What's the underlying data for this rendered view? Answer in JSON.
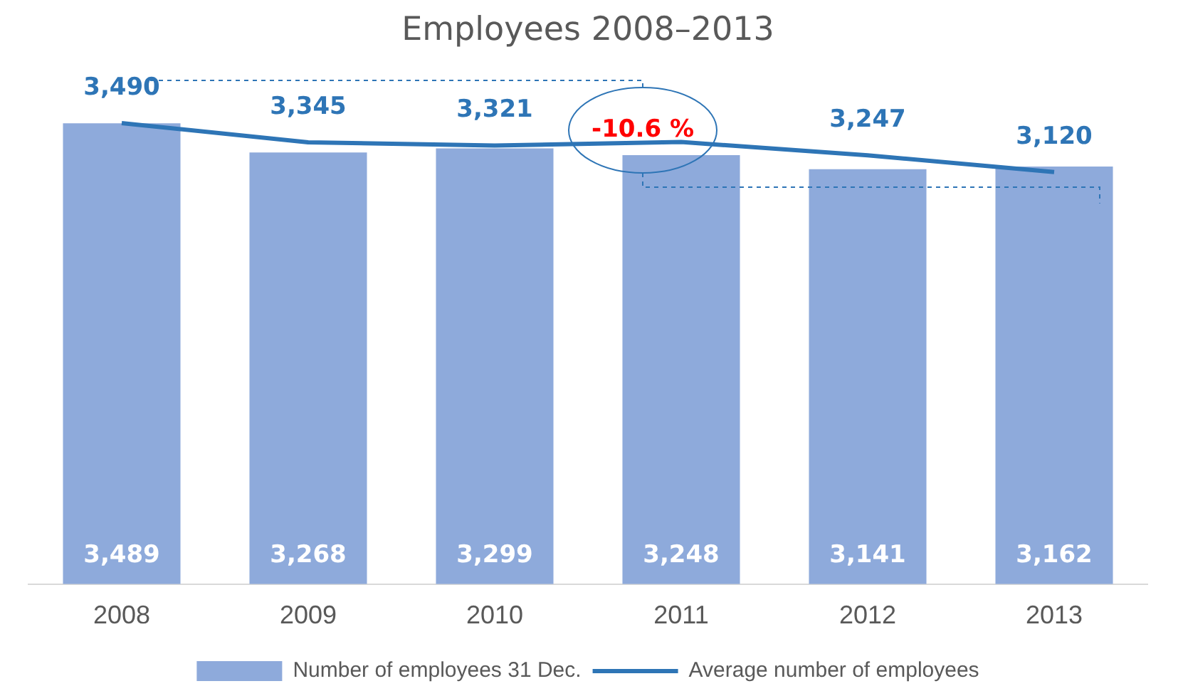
{
  "chart_data": {
    "type": "bar",
    "title": "Employees 2008–2013",
    "categories": [
      "2008",
      "2009",
      "2010",
      "2011",
      "2012",
      "2013"
    ],
    "series": [
      {
        "name": "Number of employees 31 Dec.",
        "color": "#8eaadb",
        "values": [
          3489,
          3268,
          3299,
          3248,
          3141,
          3162
        ],
        "value_labels": [
          "3,489",
          "3,268",
          "3,299",
          "3,248",
          "3,141",
          "3,162"
        ]
      },
      {
        "name": "Average number of employees",
        "type": "line",
        "color": "#2e75b6",
        "values": [
          3490,
          3345,
          3321,
          3347,
          3247,
          3120
        ],
        "value_labels": [
          "3,490",
          "3,345",
          "3,321",
          null,
          "3,247",
          "3,120"
        ]
      }
    ],
    "legend": "bottom",
    "grid": false,
    "marker": "none",
    "line_style": "solid",
    "annotations": [
      "-10.6 %"
    ]
  }
}
